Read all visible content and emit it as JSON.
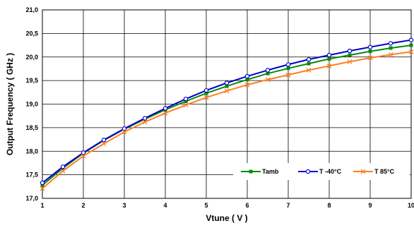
{
  "chart_data": {
    "type": "line",
    "xlabel": "Vtune ( V )",
    "ylabel": "Output Frequency ( GHz )",
    "xlim": [
      1,
      10
    ],
    "ylim": [
      17.0,
      21.0
    ],
    "x_ticks": [
      "1",
      "2",
      "3",
      "4",
      "5",
      "6",
      "7",
      "8",
      "9",
      "10"
    ],
    "y_ticks": [
      "17,0",
      "17,5",
      "18,0",
      "18,5",
      "19,0",
      "19,5",
      "20,0",
      "20,5",
      "21,0"
    ],
    "grid": true,
    "legend_position": "bottom-right",
    "x": [
      1,
      1.5,
      2,
      2.5,
      3,
      3.5,
      4,
      4.5,
      5,
      5.5,
      6,
      6.5,
      7,
      7.5,
      8,
      8.5,
      9,
      9.5,
      10
    ],
    "series": [
      {
        "name": "Tamb",
        "color": "#0a8a0a",
        "marker": "square",
        "values": [
          17.28,
          17.64,
          17.96,
          18.23,
          18.47,
          18.68,
          18.88,
          19.06,
          19.23,
          19.38,
          19.52,
          19.65,
          19.76,
          19.86,
          19.96,
          20.04,
          20.12,
          20.19,
          20.25
        ]
      },
      {
        "name": "T -40°C",
        "color": "#0000cc",
        "marker": "circle",
        "values": [
          17.33,
          17.67,
          17.97,
          18.24,
          18.48,
          18.7,
          18.91,
          19.11,
          19.29,
          19.45,
          19.59,
          19.72,
          19.84,
          19.95,
          20.04,
          20.13,
          20.21,
          20.29,
          20.36
        ]
      },
      {
        "name": "T 85°C",
        "color": "#ff7f27",
        "marker": "x",
        "values": [
          17.21,
          17.58,
          17.9,
          18.16,
          18.41,
          18.62,
          18.81,
          18.98,
          19.14,
          19.28,
          19.41,
          19.52,
          19.62,
          19.72,
          19.81,
          19.9,
          19.98,
          20.05,
          20.11
        ]
      }
    ]
  }
}
